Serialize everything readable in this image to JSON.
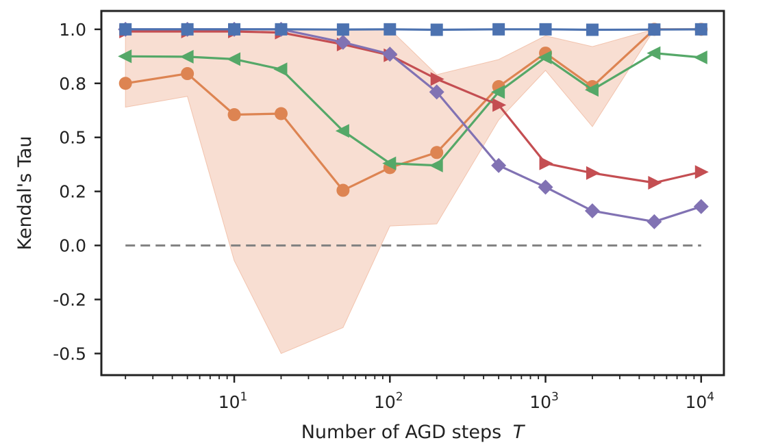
{
  "chart_data": {
    "type": "line",
    "title": "",
    "xlabel": "Number of AGD steps",
    "xlabel_var": "T",
    "ylabel": "Kendal's Tau",
    "xscale": "log",
    "xlim": [
      1.4,
      14000
    ],
    "ylim": [
      -0.6,
      1.085
    ],
    "x": [
      2,
      5,
      10,
      20,
      50,
      100,
      200,
      500,
      1000,
      2000,
      5000,
      10000
    ],
    "yticks": [
      {
        "value": 1.0,
        "label": "1.0"
      },
      {
        "value": 0.75,
        "label": "0.8"
      },
      {
        "value": 0.5,
        "label": "0.5"
      },
      {
        "value": 0.25,
        "label": "0.2"
      },
      {
        "value": 0.0,
        "label": "0.0"
      },
      {
        "value": -0.25,
        "label": "-0.2"
      },
      {
        "value": -0.5,
        "label": "-0.5"
      }
    ],
    "xticks_major": [
      {
        "value": 10,
        "base": "10",
        "exp": "1"
      },
      {
        "value": 100,
        "base": "10",
        "exp": "2"
      },
      {
        "value": 1000,
        "base": "10",
        "exp": "3"
      },
      {
        "value": 10000,
        "base": "10",
        "exp": "4"
      }
    ],
    "band": {
      "color": "#f2c3ad",
      "upper": [
        1.0,
        1.0,
        1.0,
        1.0,
        1.0,
        1.0,
        0.79,
        0.86,
        0.97,
        0.92,
        1.0,
        1.0
      ],
      "lower": [
        0.64,
        0.69,
        -0.07,
        -0.5,
        -0.38,
        0.09,
        0.1,
        0.58,
        0.81,
        0.55,
        1.0,
        1.0
      ]
    },
    "reference_line": {
      "y": 0.0,
      "color": "#808080",
      "style": "dashed"
    },
    "series": [
      {
        "name": "orange-circle",
        "marker": "circle",
        "color": "#dd8452",
        "values": [
          0.75,
          0.795,
          0.605,
          0.61,
          0.255,
          0.36,
          0.43,
          0.735,
          0.89,
          0.735,
          1.0,
          1.0
        ]
      },
      {
        "name": "green-triangle-left",
        "marker": "triangle-left",
        "color": "#55a868",
        "values": [
          0.875,
          0.873,
          0.862,
          0.815,
          0.53,
          0.38,
          0.37,
          0.71,
          0.87,
          0.72,
          0.89,
          0.87
        ]
      },
      {
        "name": "red-triangle-right",
        "marker": "triangle-right",
        "color": "#c44e52",
        "values": [
          0.99,
          0.99,
          0.99,
          0.985,
          0.93,
          0.88,
          0.77,
          0.65,
          0.38,
          0.335,
          0.29,
          0.34
        ]
      },
      {
        "name": "purple-diamond",
        "marker": "diamond",
        "color": "#8172b3",
        "values": [
          1.0,
          1.0,
          1.0,
          1.0,
          0.94,
          0.885,
          0.71,
          0.37,
          0.27,
          0.16,
          0.11,
          0.18
        ]
      },
      {
        "name": "blue-square",
        "marker": "square",
        "color": "#4c72b0",
        "values": [
          1.0,
          1.0,
          1.0,
          1.0,
          0.999,
          1.0,
          0.998,
          1.0,
          1.0,
          0.998,
          0.999,
          1.0
        ]
      }
    ]
  }
}
